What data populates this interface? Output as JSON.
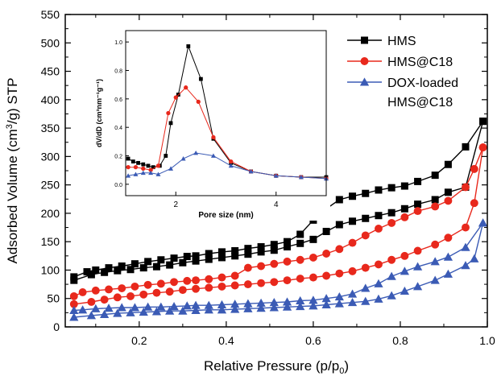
{
  "colors": {
    "series": [
      "#000000",
      "#e8281c",
      "#3b5bb5"
    ],
    "axis": "#000000",
    "background": "#ffffff"
  },
  "chart_data": [
    {
      "type": "line",
      "role": "main",
      "xlabel_main": "Relative Pressure (p/p",
      "xlabel_sub": "0",
      "xlabel_tail": ")",
      "ylabel_pre": "Adsorbed Volume (cm",
      "ylabel_sup": "3",
      "ylabel_post": "/g) STP",
      "xlim": [
        0.03,
        1.0
      ],
      "ylim": [
        0,
        550
      ],
      "x_ticks": [
        "0.2",
        "0.4",
        "0.6",
        "0.8",
        "1.0"
      ],
      "x_tick_values": [
        0.2,
        0.4,
        0.6,
        0.8,
        1.0
      ],
      "y_ticks": [
        "0",
        "50",
        "100",
        "150",
        "200",
        "250",
        "300",
        "350",
        "400",
        "450",
        "500",
        "550"
      ],
      "y_tick_values": [
        0,
        50,
        100,
        150,
        200,
        250,
        300,
        350,
        400,
        450,
        500,
        550
      ],
      "legend_position": "top-right",
      "grid": false,
      "series": [
        {
          "name": "HMS",
          "marker": "square",
          "adsorption": {
            "x": [
              0.05,
              0.09,
              0.12,
              0.15,
              0.18,
              0.21,
              0.24,
              0.27,
              0.3,
              0.33,
              0.36,
              0.39,
              0.42,
              0.45,
              0.48,
              0.51,
              0.54,
              0.57,
              0.6,
              0.63,
              0.66,
              0.69,
              0.72,
              0.75,
              0.78,
              0.81,
              0.84,
              0.88,
              0.91,
              0.95,
              0.99
            ],
            "y": [
              82,
              92,
              96,
              99,
              101,
              104,
              106,
              109,
              113,
              116,
              119,
              122,
              125,
              128,
              132,
              135,
              141,
              147,
              154,
              168,
              180,
              186,
              191,
              196,
              201,
              208,
              216,
              224,
              237,
              246,
              362
            ]
          },
          "desorption": {
            "x": [
              0.99,
              0.95,
              0.91,
              0.88,
              0.84,
              0.81,
              0.78,
              0.75,
              0.72,
              0.69,
              0.66,
              0.63,
              0.6,
              0.57,
              0.54,
              0.51,
              0.48,
              0.45,
              0.42,
              0.39,
              0.36,
              0.33,
              0.31,
              0.28,
              0.25,
              0.22,
              0.19,
              0.16,
              0.13,
              0.1,
              0.08,
              0.05
            ],
            "y": [
              362,
              317,
              286,
              267,
              256,
              248,
              245,
              241,
              235,
              230,
              224,
              208,
              188,
              163,
              150,
              145,
              141,
              138,
              134,
              132,
              129,
              125,
              124,
              121,
              118,
              115,
              111,
              107,
              104,
              100,
              97,
              88
            ]
          }
        },
        {
          "name": "HMS@C18",
          "marker": "circle",
          "adsorption": {
            "x": [
              0.05,
              0.09,
              0.12,
              0.15,
              0.18,
              0.21,
              0.24,
              0.27,
              0.3,
              0.33,
              0.36,
              0.39,
              0.42,
              0.45,
              0.48,
              0.51,
              0.54,
              0.57,
              0.6,
              0.63,
              0.66,
              0.69,
              0.72,
              0.75,
              0.78,
              0.81,
              0.84,
              0.88,
              0.91,
              0.95,
              0.97,
              0.99
            ],
            "y": [
              40,
              44,
              48,
              52,
              54,
              57,
              60,
              62,
              65,
              67,
              69,
              71,
              73,
              75,
              77,
              79,
              82,
              85,
              87,
              90,
              94,
              98,
              104,
              110,
              118,
              125,
              134,
              145,
              157,
              175,
              218,
              316
            ]
          },
          "desorption": {
            "x": [
              0.99,
              0.97,
              0.95,
              0.91,
              0.88,
              0.84,
              0.81,
              0.78,
              0.75,
              0.72,
              0.69,
              0.66,
              0.63,
              0.6,
              0.57,
              0.54,
              0.51,
              0.48,
              0.45,
              0.42,
              0.39,
              0.36,
              0.33,
              0.31,
              0.28,
              0.25,
              0.22,
              0.19,
              0.16,
              0.13,
              0.1,
              0.07,
              0.05
            ],
            "y": [
              316,
              278,
              246,
              222,
              212,
              204,
              193,
              183,
              173,
              161,
              148,
              137,
              129,
              122,
              118,
              115,
              111,
              107,
              104,
              90,
              87,
              84,
              82,
              81,
              79,
              76,
              74,
              71,
              68,
              66,
              64,
              61,
              54
            ]
          }
        },
        {
          "name": "DOX-loaded",
          "name_line2": "HMS@C18",
          "marker": "triangle",
          "adsorption": {
            "x": [
              0.05,
              0.09,
              0.12,
              0.15,
              0.18,
              0.21,
              0.24,
              0.27,
              0.3,
              0.33,
              0.36,
              0.39,
              0.42,
              0.45,
              0.48,
              0.51,
              0.54,
              0.57,
              0.6,
              0.63,
              0.66,
              0.69,
              0.72,
              0.75,
              0.78,
              0.81,
              0.84,
              0.88,
              0.91,
              0.95,
              0.97,
              0.99
            ],
            "y": [
              17,
              20,
              22,
              24,
              25,
              26,
              27,
              28,
              28,
              29,
              30,
              30,
              31,
              32,
              33,
              34,
              35,
              36,
              37,
              39,
              41,
              43,
              45,
              49,
              55,
              63,
              71,
              82,
              93,
              108,
              120,
              183
            ]
          },
          "desorption": {
            "x": [
              0.99,
              0.95,
              0.91,
              0.88,
              0.84,
              0.81,
              0.78,
              0.75,
              0.72,
              0.69,
              0.66,
              0.63,
              0.6,
              0.57,
              0.54,
              0.51,
              0.48,
              0.45,
              0.42,
              0.39,
              0.36,
              0.33,
              0.31,
              0.28,
              0.25,
              0.22,
              0.19,
              0.16,
              0.13,
              0.1,
              0.07,
              0.05
            ],
            "y": [
              183,
              140,
              123,
              115,
              106,
              98,
              89,
              76,
              68,
              58,
              53,
              50,
              47,
              46,
              44,
              43,
              42,
              41,
              40,
              39,
              38,
              38,
              37,
              36,
              35,
              35,
              34,
              34,
              33,
              32,
              30,
              29
            ]
          }
        }
      ]
    },
    {
      "type": "line",
      "role": "inset",
      "xlabel": "Pore size (nm)",
      "ylabel": "dV/dD (cm³nm⁻¹g⁻¹)",
      "xlim": [
        1,
        5
      ],
      "ylim": [
        -0.08,
        1.08
      ],
      "x_ticks": [
        "2",
        "4"
      ],
      "x_tick_values": [
        2,
        4
      ],
      "y_ticks": [
        "0.0",
        "0.2",
        "0.4",
        "0.6",
        "0.8",
        "1.0"
      ],
      "y_tick_values": [
        0,
        0.2,
        0.4,
        0.6,
        0.8,
        1.0
      ],
      "series": [
        {
          "name": "HMS",
          "x": [
            1.05,
            1.15,
            1.25,
            1.35,
            1.45,
            1.55,
            1.68,
            1.8,
            1.9,
            2.05,
            2.25,
            2.5,
            2.75,
            3.1,
            3.5,
            4.0,
            4.5,
            5.0
          ],
          "y": [
            0.18,
            0.16,
            0.15,
            0.14,
            0.13,
            0.12,
            0.13,
            0.2,
            0.43,
            0.63,
            0.97,
            0.74,
            0.32,
            0.15,
            0.09,
            0.06,
            0.05,
            0.05
          ]
        },
        {
          "name": "HMS@C18",
          "x": [
            1.05,
            1.2,
            1.35,
            1.5,
            1.65,
            1.85,
            2.0,
            2.2,
            2.45,
            2.75,
            3.1,
            3.5,
            4.0,
            4.5,
            5.0
          ],
          "y": [
            0.12,
            0.12,
            0.11,
            0.1,
            0.13,
            0.5,
            0.61,
            0.68,
            0.58,
            0.33,
            0.16,
            0.09,
            0.06,
            0.05,
            0.04
          ]
        },
        {
          "name": "DOX-loaded HMS@C18",
          "x": [
            1.05,
            1.2,
            1.35,
            1.5,
            1.65,
            1.9,
            2.15,
            2.4,
            2.75,
            3.1,
            3.5,
            4.0,
            4.5,
            5.0
          ],
          "y": [
            0.06,
            0.07,
            0.08,
            0.08,
            0.07,
            0.11,
            0.18,
            0.22,
            0.2,
            0.13,
            0.09,
            0.06,
            0.05,
            0.04
          ]
        }
      ]
    }
  ]
}
